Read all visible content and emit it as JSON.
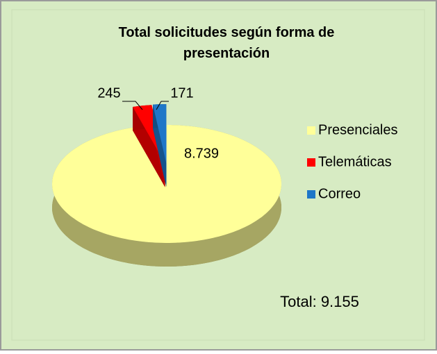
{
  "chart_data": {
    "type": "pie",
    "title": "Total solicitudes según forma de presentación",
    "categories": [
      "Presenciales",
      "Telemáticas",
      "Correo"
    ],
    "values": [
      8739,
      245,
      171
    ],
    "value_labels": [
      "8.739",
      "245",
      "171"
    ],
    "colors": [
      "#ffff99",
      "#ff0000",
      "#1f77c8"
    ],
    "annotation": "Total: 9.155",
    "legend": "right"
  }
}
